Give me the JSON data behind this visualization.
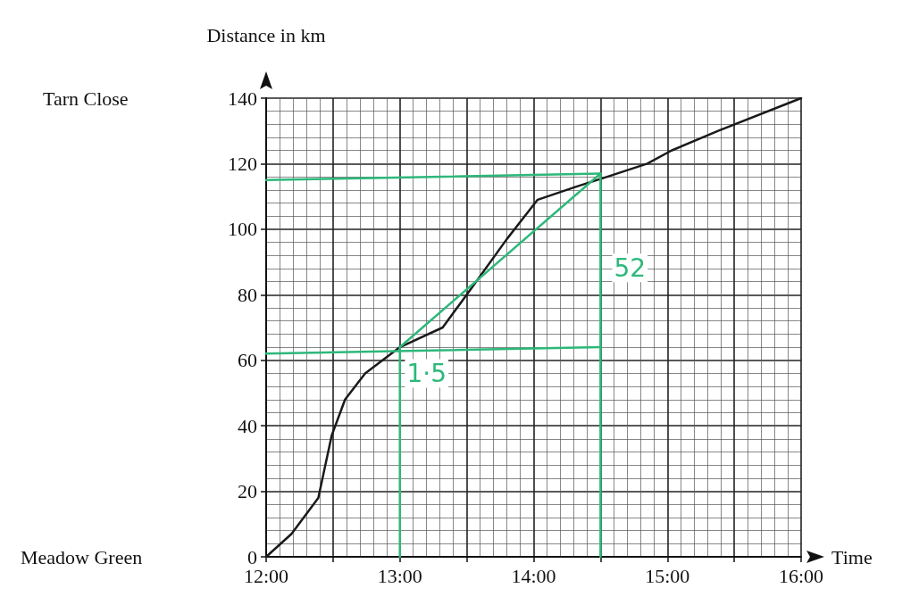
{
  "chart_data": {
    "type": "line",
    "xlabel": "Time",
    "ylabel": "Distance in km",
    "xlim": [
      12,
      16
    ],
    "ylim": [
      0,
      140
    ],
    "xticks": [
      {
        "value": 12,
        "label": "12:00"
      },
      {
        "value": 12.5,
        "label": null
      },
      {
        "value": 13,
        "label": "13:00"
      },
      {
        "value": 13.5,
        "label": null
      },
      {
        "value": 14,
        "label": "14:00"
      },
      {
        "value": 14.5,
        "label": null
      },
      {
        "value": 15,
        "label": "15:00"
      },
      {
        "value": 15.5,
        "label": null
      },
      {
        "value": 16,
        "label": "16:00"
      }
    ],
    "yticks": [
      0,
      20,
      40,
      60,
      80,
      100,
      120,
      140
    ],
    "grid": true,
    "marker": "none",
    "line_style": "solid",
    "series": [
      {
        "color": "#1a1a1a",
        "x": [
          12,
          12.19,
          12.39,
          12.49,
          12.59,
          12.74,
          13,
          13.32,
          13.5,
          13.8,
          14.03,
          14.32,
          14.55,
          14.85,
          15.03,
          15.38,
          16
        ],
        "values": [
          0,
          7,
          18,
          37,
          48,
          56,
          64,
          70,
          80,
          97,
          109,
          113,
          116,
          120,
          124,
          130,
          140
        ]
      },
      {
        "color": "#2db87a",
        "x": [
          13,
          14.5
        ],
        "values": [
          64,
          117
        ]
      },
      {
        "color": "#2db87a",
        "x": [
          14.5,
          12
        ],
        "values": [
          117,
          115
        ]
      },
      {
        "color": "#2db87a",
        "x": [
          14.5,
          12
        ],
        "values": [
          64,
          62
        ]
      },
      {
        "color": "#2db87a",
        "x": [
          13,
          13
        ],
        "values": [
          0,
          64
        ]
      },
      {
        "color": "#2db87a",
        "x": [
          14.5,
          14.5
        ],
        "values": [
          0,
          117
        ]
      }
    ],
    "annotations": [
      "Tarn Close",
      "Meadow Green",
      "52",
      "1·5"
    ]
  }
}
